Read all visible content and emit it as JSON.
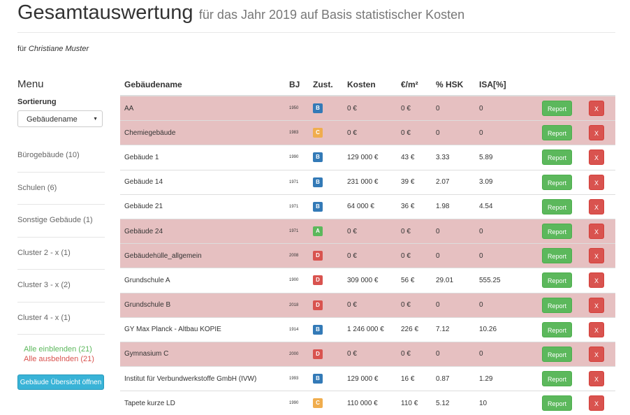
{
  "header": {
    "title": "Gesamtauswertung",
    "subtitle": "für das Jahr 2019 auf Basis statistischer Kosten",
    "fuer_label": "für",
    "fuer_name": "Christiane Muster"
  },
  "sidebar": {
    "menu_title": "Menu",
    "sort_label": "Sortierung",
    "sort_value": "Gebäudename",
    "items": [
      {
        "label": "Bürogebäude (10)"
      },
      {
        "label": "Schulen (6)"
      },
      {
        "label": "Sonstige Gebäude (1)"
      },
      {
        "label": "Cluster 2 - x (1)"
      },
      {
        "label": "Cluster 3 - x (2)"
      },
      {
        "label": "Cluster 4 - x (1)"
      }
    ],
    "show_all": "Alle einblenden (21)",
    "hide_all": "Alle ausbelnden (21)",
    "overview_button": "Gebäude Übersicht öffnen"
  },
  "table": {
    "headers": [
      "Gebäudename",
      "BJ",
      "Zust.",
      "Kosten",
      "€/m²",
      "% HSK",
      "ISA[%]"
    ],
    "report_label": "Report",
    "delete_label": "X",
    "badge_colors": {
      "A": "#5cb85c",
      "B": "#337ab7",
      "C": "#f0ad4e",
      "D": "#d9534f"
    },
    "rows": [
      {
        "name": "AA",
        "bj": "1950",
        "zust": "B",
        "kosten": "0 €",
        "eur_m2": "0 €",
        "hsk": "0",
        "isa": "0",
        "highlight": true
      },
      {
        "name": "Chemiegebäude",
        "bj": "1983",
        "zust": "C",
        "kosten": "0 €",
        "eur_m2": "0 €",
        "hsk": "0",
        "isa": "0",
        "highlight": true
      },
      {
        "name": "Gebäude 1",
        "bj": "1990",
        "zust": "B",
        "kosten": "129 000 €",
        "eur_m2": "43 €",
        "hsk": "3.33",
        "isa": "5.89",
        "highlight": false
      },
      {
        "name": "Gebäude 14",
        "bj": "1971",
        "zust": "B",
        "kosten": "231 000 €",
        "eur_m2": "39 €",
        "hsk": "2.07",
        "isa": "3.09",
        "highlight": false
      },
      {
        "name": "Gebäude 21",
        "bj": "1971",
        "zust": "B",
        "kosten": "64 000 €",
        "eur_m2": "36 €",
        "hsk": "1.98",
        "isa": "4.54",
        "highlight": false
      },
      {
        "name": "Gebäude 24",
        "bj": "1971",
        "zust": "A",
        "kosten": "0 €",
        "eur_m2": "0 €",
        "hsk": "0",
        "isa": "0",
        "highlight": true
      },
      {
        "name": "Gebäudehülle_allgemein",
        "bj": "2008",
        "zust": "D",
        "kosten": "0 €",
        "eur_m2": "0 €",
        "hsk": "0",
        "isa": "0",
        "highlight": true
      },
      {
        "name": "Grundschule A",
        "bj": "1900",
        "zust": "D",
        "kosten": "309 000 €",
        "eur_m2": "56 €",
        "hsk": "29.01",
        "isa": "555.25",
        "highlight": false
      },
      {
        "name": "Grundschule B",
        "bj": "2018",
        "zust": "D",
        "kosten": "0 €",
        "eur_m2": "0 €",
        "hsk": "0",
        "isa": "0",
        "highlight": true
      },
      {
        "name": "GY Max Planck - Altbau KOPIE",
        "bj": "1914",
        "zust": "B",
        "kosten": "1 246 000 €",
        "eur_m2": "226 €",
        "hsk": "7.12",
        "isa": "10.26",
        "highlight": false
      },
      {
        "name": "Gymnasium C",
        "bj": "2000",
        "zust": "D",
        "kosten": "0 €",
        "eur_m2": "0 €",
        "hsk": "0",
        "isa": "0",
        "highlight": true
      },
      {
        "name": "Institut für Verbundwerkstoffe GmbH (IVW)",
        "bj": "1993",
        "zust": "B",
        "kosten": "129 000 €",
        "eur_m2": "16 €",
        "hsk": "0.87",
        "isa": "1.29",
        "highlight": false
      },
      {
        "name": "Tapete kurze LD",
        "bj": "1990",
        "zust": "C",
        "kosten": "110 000 €",
        "eur_m2": "110 €",
        "hsk": "5.12",
        "isa": "10",
        "highlight": false
      }
    ]
  }
}
